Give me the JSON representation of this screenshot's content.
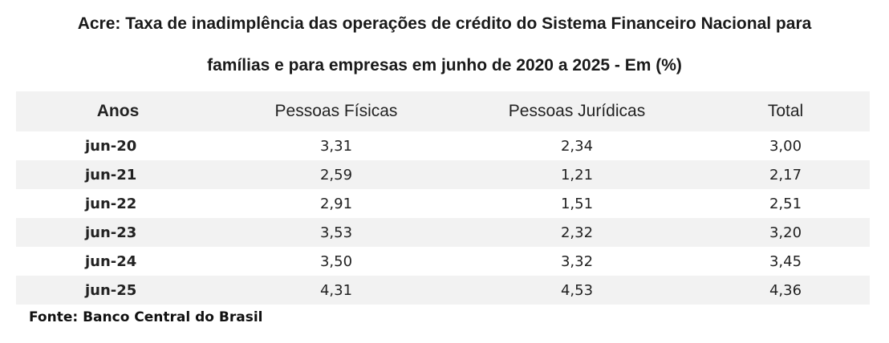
{
  "chart_data": {
    "type": "table",
    "title_line1": "Acre: Taxa de inadimplência das operações de crédito do Sistema Financeiro Nacional  para",
    "title_line2": "famílias e para empresas em junho de 2020 a 2025 - Em (%)",
    "columns": [
      "Anos",
      "Pessoas Físicas",
      "Pessoas Jurídicas",
      "Total"
    ],
    "rows": [
      [
        "jun-20",
        "3,31",
        "2,34",
        "3,00"
      ],
      [
        "jun-21",
        "2,59",
        "1,21",
        "2,17"
      ],
      [
        "jun-22",
        "2,91",
        "1,51",
        "2,51"
      ],
      [
        "jun-23",
        "3,53",
        "2,32",
        "3,20"
      ],
      [
        "jun-24",
        "3,50",
        "3,32",
        "3,45"
      ],
      [
        "jun-25",
        "4,31",
        "4,53",
        "4,36"
      ]
    ],
    "source": "Fonte: Banco Central do Brasil"
  }
}
